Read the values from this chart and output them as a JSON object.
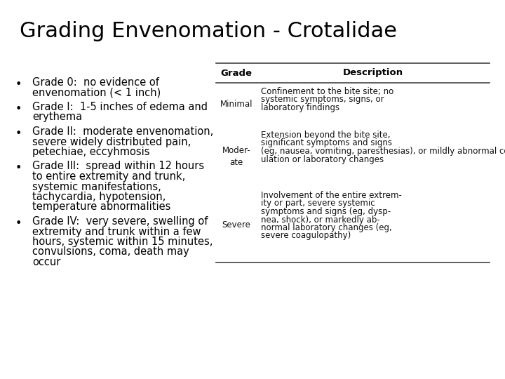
{
  "title": "Grading Envenomation - Crotalidae",
  "title_fontsize": 22,
  "background_color": "#ffffff",
  "text_color": "#000000",
  "bullets": [
    "Grade 0:  no evidence of\nenvenomation (< 1 inch)",
    "Grade I:  1-5 inches of edema and\nerythema",
    "Grade II:  moderate envenomation,\nsevere widely distributed pain,\npetechiae, eccyhmosis",
    "Grade III:  spread within 12 hours\nto entire extremity and trunk,\nsystemic manifestations,\ntachycardia, hypotension,\ntemperature abnormalities",
    "Grade IV:  very severe, swelling of\nextremity and trunk within a few\nhours, systemic within 15 minutes,\nconvulsions, coma, death may\noccur"
  ],
  "bullet_fontsize": 10.5,
  "table_header": [
    "Grade",
    "Description"
  ],
  "table_rows": [
    [
      "Minimal",
      "Confinement to the bite site; no\nsystemic symptoms, signs, or\nlaboratory findings"
    ],
    [
      "Moder-\nate",
      "Extension beyond the bite site,\nsignificant symptoms and signs\n(eg, nausea, vomiting, paresthesias), or mildly abnormal coag-\nulation or laboratory changes"
    ],
    [
      "Severe",
      "Involvement of the entire extrem-\nity or part, severe systemic\nsymptoms and signs (eg, dysp-\nnea, shock), or markedly ab-\nnormal laboratory changes (eg,\nsevere coagulopathy)"
    ]
  ],
  "table_fontsize": 8.5,
  "table_header_fontsize": 9.5,
  "table_line_color": "#444444"
}
